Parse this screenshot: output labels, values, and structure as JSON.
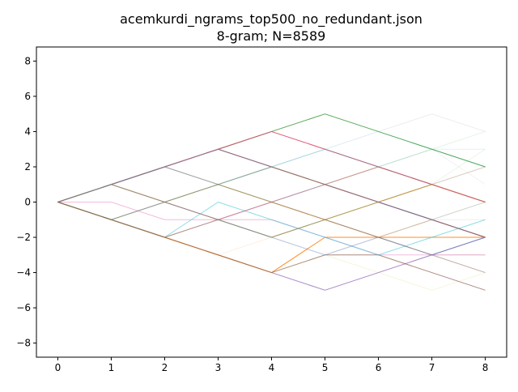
{
  "chart_data": {
    "type": "line",
    "title": "acemkurdi_ngrams_top500_no_redundant.json",
    "subtitle": "8-gram; N=8589",
    "xlabel": "",
    "ylabel": "",
    "xlim": [
      -0.4,
      8.4
    ],
    "ylim": [
      -8.8,
      8.8
    ],
    "xticks": [
      0,
      1,
      2,
      3,
      4,
      5,
      6,
      7,
      8
    ],
    "yticks": [
      -8,
      -6,
      -4,
      -2,
      0,
      2,
      4,
      6,
      8
    ],
    "grid": false,
    "legend": "none",
    "x": [
      0,
      1,
      2,
      3,
      4,
      5,
      6,
      7,
      8
    ],
    "series": [
      {
        "color": "#2ca02c",
        "opacity": 0.8,
        "values": [
          0,
          1,
          2,
          3,
          4,
          5,
          4,
          3,
          2
        ]
      },
      {
        "color": "#d62728",
        "opacity": 0.8,
        "values": [
          0,
          1,
          2,
          3,
          4,
          3,
          2,
          1,
          0
        ]
      },
      {
        "color": "#1f77b4",
        "opacity": 0.75,
        "values": [
          0,
          1,
          2,
          3,
          2,
          1,
          0,
          -1,
          -2
        ]
      },
      {
        "color": "#8c564b",
        "opacity": 0.75,
        "values": [
          0,
          1,
          2,
          3,
          2,
          1,
          0,
          -1,
          -2
        ]
      },
      {
        "color": "#8c564b",
        "opacity": 0.6,
        "values": [
          0,
          1,
          0,
          -1,
          -2,
          -1,
          0,
          1,
          0
        ]
      },
      {
        "color": "#9467bd",
        "opacity": 0.8,
        "values": [
          0,
          -1,
          -2,
          -3,
          -4,
          -5,
          -4,
          -3,
          -2
        ]
      },
      {
        "color": "#ff7f0e",
        "opacity": 0.9,
        "values": [
          0,
          -1,
          -2,
          -3,
          -4,
          -2,
          -2,
          -2,
          -2
        ]
      },
      {
        "color": "#e377c2",
        "opacity": 0.5,
        "values": [
          0,
          0,
          -1,
          -1,
          -1,
          -2,
          -3,
          -3,
          -3
        ]
      },
      {
        "color": "#8c564b",
        "opacity": 0.7,
        "values": [
          0,
          -1,
          -2,
          -3,
          -4,
          -3,
          -3,
          -4,
          -5
        ]
      },
      {
        "color": "#8c564b",
        "opacity": 0.5,
        "values": [
          0,
          1,
          2,
          1,
          0,
          -1,
          -2,
          -3,
          -4
        ]
      },
      {
        "color": "#bcbd22",
        "opacity": 0.45,
        "values": [
          0,
          1,
          0,
          1,
          0,
          -1,
          0,
          1,
          0
        ]
      },
      {
        "color": "#7f7f7f",
        "opacity": 0.45,
        "values": [
          0,
          -1,
          0,
          1,
          2,
          1,
          0,
          -1,
          -2
        ]
      },
      {
        "color": "#17becf",
        "opacity": 0.5,
        "values": [
          0,
          -1,
          -2,
          0,
          -1,
          -2,
          -3,
          -2,
          -1
        ]
      },
      {
        "color": "#e377c2",
        "opacity": 0.4,
        "values": [
          0,
          1,
          2,
          3,
          4,
          3,
          2,
          1,
          0
        ]
      },
      {
        "color": "#e377c2",
        "opacity": 0.3,
        "values": [
          0,
          1,
          2,
          3,
          2,
          1,
          2,
          1,
          0
        ]
      },
      {
        "color": "#1f77b4",
        "opacity": 0.35,
        "values": [
          0,
          -1,
          -2,
          -1,
          -2,
          -3,
          -2,
          -3,
          -2
        ]
      },
      {
        "color": "#d62728",
        "opacity": 0.35,
        "values": [
          0,
          -1,
          -2,
          -1,
          0,
          1,
          2,
          1,
          0
        ]
      },
      {
        "color": "#9467bd",
        "opacity": 0.35,
        "values": [
          0,
          1,
          0,
          -1,
          0,
          1,
          0,
          -1,
          -2
        ]
      },
      {
        "color": "#ff7f0e",
        "opacity": 0.25,
        "values": [
          0,
          1,
          0,
          1,
          2,
          1,
          0,
          1,
          2
        ]
      },
      {
        "color": "#2ca02c",
        "opacity": 0.25,
        "values": [
          0,
          -1,
          0,
          -1,
          -2,
          -1,
          -2,
          -1,
          0
        ]
      },
      {
        "color": "#7f7f7f",
        "opacity": 0.15,
        "values": [
          0,
          1,
          2,
          3,
          4,
          5,
          4,
          5,
          4
        ]
      },
      {
        "color": "#bcbd22",
        "opacity": 0.15,
        "values": [
          0,
          -1,
          -2,
          -3,
          -4,
          -3,
          -4,
          -5,
          -4
        ]
      },
      {
        "color": "#17becf",
        "opacity": 0.15,
        "values": [
          0,
          1,
          2,
          1,
          2,
          3,
          2,
          3,
          3
        ]
      },
      {
        "color": "#8c564b",
        "opacity": 0.15,
        "values": [
          0,
          -1,
          -2,
          -1,
          0,
          -1,
          -2,
          -3,
          -3
        ]
      },
      {
        "color": "#e377c2",
        "opacity": 0.15,
        "values": [
          0,
          1,
          0,
          -1,
          -2,
          -3,
          -2,
          -1,
          0
        ]
      },
      {
        "color": "#1f77b4",
        "opacity": 0.15,
        "values": [
          0,
          -1,
          0,
          1,
          2,
          3,
          4,
          3,
          2
        ]
      },
      {
        "color": "#2ca02c",
        "opacity": 0.12,
        "values": [
          0,
          1,
          0,
          1,
          0,
          1,
          2,
          3,
          4
        ]
      },
      {
        "color": "#d62728",
        "opacity": 0.12,
        "values": [
          0,
          -1,
          0,
          -1,
          0,
          -1,
          -2,
          -1,
          -2
        ]
      },
      {
        "color": "#9467bd",
        "opacity": 0.12,
        "values": [
          0,
          1,
          2,
          1,
          0,
          1,
          0,
          1,
          2
        ]
      },
      {
        "color": "#ff7f0e",
        "opacity": 0.12,
        "values": [
          0,
          -1,
          -2,
          -3,
          -2,
          -1,
          -2,
          -1,
          -2
        ]
      },
      {
        "color": "#7f7f7f",
        "opacity": 0.1,
        "values": [
          0,
          1,
          2,
          3,
          2,
          3,
          2,
          3,
          1
        ]
      },
      {
        "color": "#bcbd22",
        "opacity": 0.1,
        "values": [
          0,
          -1,
          -2,
          -1,
          -2,
          -1,
          0,
          1,
          0
        ]
      },
      {
        "color": "#17becf",
        "opacity": 0.1,
        "values": [
          0,
          1,
          0,
          1,
          2,
          3,
          2,
          1,
          2
        ]
      },
      {
        "color": "#8c564b",
        "opacity": 0.1,
        "values": [
          0,
          -1,
          0,
          1,
          0,
          -1,
          0,
          -1,
          -1
        ]
      },
      {
        "color": "#2ca02c",
        "opacity": 0.1,
        "values": [
          0,
          1,
          2,
          1,
          2,
          1,
          2,
          1,
          3
        ]
      }
    ]
  }
}
